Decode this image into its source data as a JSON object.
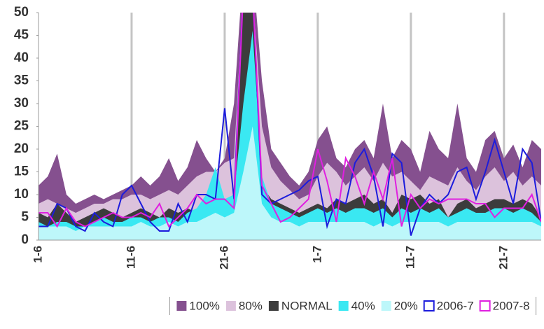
{
  "chart_data": {
    "type": "area",
    "categories": [
      "1-6",
      null,
      null,
      null,
      null,
      null,
      null,
      null,
      null,
      null,
      "11-6",
      null,
      null,
      null,
      null,
      null,
      null,
      null,
      null,
      null,
      "21-6",
      null,
      null,
      null,
      null,
      null,
      null,
      null,
      null,
      null,
      "1-7",
      null,
      null,
      null,
      null,
      null,
      null,
      null,
      null,
      null,
      "11-7",
      null,
      null,
      null,
      null,
      null,
      null,
      null,
      null,
      null,
      "21-7",
      null,
      null,
      null,
      null
    ],
    "ylim": [
      0,
      50
    ],
    "yticks": [
      0,
      5,
      10,
      15,
      20,
      25,
      30,
      35,
      40,
      45,
      50
    ],
    "grid": true,
    "legend": "bottom",
    "series": [
      {
        "name": "100%",
        "kind": "area",
        "color": "#85508f",
        "values": [
          12,
          14,
          19,
          10,
          8,
          9,
          10,
          9,
          10,
          11,
          12,
          14,
          12,
          14,
          18,
          13,
          16,
          22,
          18,
          15,
          18,
          30,
          60,
          60,
          35,
          20,
          17,
          14,
          12,
          15,
          22,
          25,
          18,
          16,
          20,
          22,
          18,
          30,
          18,
          22,
          20,
          15,
          24,
          20,
          18,
          30,
          18,
          15,
          22,
          24,
          18,
          21,
          16,
          22,
          20
        ]
      },
      {
        "name": "80%",
        "kind": "area",
        "color": "#dcc2dc",
        "values": [
          8,
          9,
          8,
          7,
          6,
          7,
          8,
          8,
          9,
          9,
          10,
          10,
          9,
          10,
          11,
          10,
          12,
          14,
          15,
          15,
          17,
          18,
          55,
          55,
          25,
          16,
          13,
          11,
          9,
          10,
          14,
          17,
          15,
          12,
          14,
          16,
          13,
          17,
          14,
          15,
          13,
          11,
          14,
          13,
          12,
          16,
          13,
          11,
          14,
          16,
          13,
          15,
          12,
          14,
          12
        ]
      },
      {
        "name": "NORMAL",
        "kind": "area",
        "color": "#3c3c3c",
        "values": [
          6,
          5,
          8,
          6,
          4,
          5,
          6,
          7,
          6,
          5,
          6,
          7,
          6,
          5,
          7,
          6,
          7,
          6,
          7,
          8,
          9,
          9,
          52,
          52,
          12,
          9,
          8,
          7,
          6,
          7,
          8,
          7,
          9,
          8,
          9,
          10,
          8,
          9,
          6,
          10,
          9,
          10,
          8,
          9,
          5,
          8,
          9,
          7,
          8,
          9,
          9,
          8,
          9,
          8,
          5
        ]
      },
      {
        "name": "40%",
        "kind": "area",
        "color": "#3ae8f2",
        "values": [
          4,
          3,
          4,
          4,
          3,
          3,
          4,
          5,
          4,
          4,
          5,
          5,
          4,
          5,
          5,
          4,
          6,
          7,
          10,
          16,
          9,
          10,
          30,
          46,
          14,
          8,
          7,
          6,
          5,
          6,
          7,
          6,
          7,
          6,
          7,
          7,
          6,
          7,
          5,
          7,
          6,
          7,
          6,
          7,
          5,
          6,
          7,
          6,
          6,
          7,
          7,
          6,
          7,
          6,
          4
        ]
      },
      {
        "name": "20%",
        "kind": "area",
        "color": "#bdf7fa",
        "values": [
          3,
          3,
          3,
          3,
          2,
          3,
          3,
          3,
          3,
          3,
          3,
          4,
          3,
          3,
          4,
          3,
          4,
          4,
          5,
          6,
          5,
          6,
          15,
          25,
          8,
          5,
          4,
          4,
          3,
          4,
          4,
          4,
          4,
          4,
          4,
          4,
          3,
          4,
          3,
          4,
          4,
          4,
          4,
          4,
          3,
          4,
          4,
          4,
          4,
          4,
          4,
          4,
          4,
          4,
          3
        ]
      },
      {
        "name": "2006-7",
        "kind": "line",
        "color": "#1c1cdc",
        "values": [
          3,
          3,
          8,
          7,
          3,
          2,
          6,
          4,
          3,
          10,
          12,
          8,
          4,
          2,
          2,
          8,
          4,
          10,
          10,
          9,
          29,
          9,
          55,
          55,
          10,
          8,
          9,
          10,
          11,
          13,
          14,
          3,
          9,
          8,
          17,
          20,
          14,
          3,
          19,
          17,
          1,
          7,
          10,
          8,
          10,
          15,
          16,
          9,
          15,
          22,
          15,
          8,
          20,
          17,
          4
        ]
      },
      {
        "name": "2007-8",
        "kind": "line",
        "color": "#e020e0",
        "values": [
          6,
          6,
          3,
          7,
          4,
          3,
          4,
          5,
          6,
          5,
          5,
          6,
          5,
          8,
          3,
          5,
          7,
          10,
          8,
          9,
          9,
          7,
          55,
          55,
          12,
          8,
          4,
          5,
          7,
          9,
          20,
          13,
          4,
          18,
          14,
          8,
          15,
          9,
          18,
          3,
          10,
          7,
          9,
          8,
          9,
          9,
          9,
          8,
          8,
          5,
          7,
          7,
          7,
          10,
          4
        ]
      }
    ]
  }
}
